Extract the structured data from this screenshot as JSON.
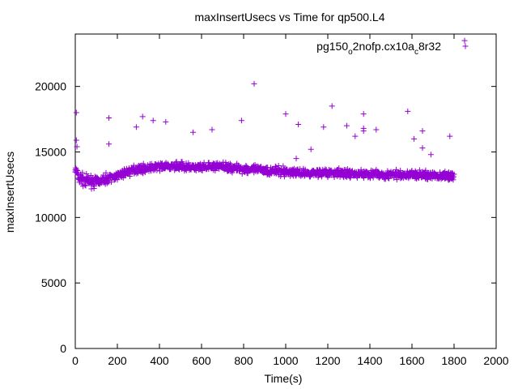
{
  "chart_data": {
    "type": "scatter",
    "title": "maxInsertUsecs vs Time for qp500.L4",
    "xlabel": "Time(s)",
    "ylabel": "maxInsertUsecs",
    "xlim": [
      0,
      2000
    ],
    "ylim": [
      0,
      24000
    ],
    "x_ticks": [
      "0",
      "200",
      "400",
      "600",
      "800",
      "1000",
      "1200",
      "1400",
      "1600",
      "1800",
      "2000"
    ],
    "y_ticks": [
      "0",
      "5000",
      "10000",
      "15000",
      "20000"
    ],
    "x_tick_values": [
      0,
      200,
      400,
      600,
      800,
      1000,
      1200,
      1400,
      1600,
      1800,
      2000
    ],
    "y_tick_values": [
      0,
      5000,
      10000,
      15000,
      20000
    ],
    "grid": false,
    "legend_position": "top-right",
    "marker": "+",
    "series": [
      {
        "name_parts": [
          "pg150",
          "o",
          "2nofp.cx10a",
          "c",
          "8r32"
        ],
        "color": "#9400d3",
        "trend": [
          [
            0,
            13600
          ],
          [
            20,
            13000
          ],
          [
            50,
            12800
          ],
          [
            100,
            12700
          ],
          [
            150,
            12900
          ],
          [
            200,
            13200
          ],
          [
            250,
            13500
          ],
          [
            300,
            13700
          ],
          [
            400,
            13900
          ],
          [
            500,
            13900
          ],
          [
            600,
            13800
          ],
          [
            700,
            13900
          ],
          [
            800,
            13700
          ],
          [
            900,
            13600
          ],
          [
            1000,
            13500
          ],
          [
            1100,
            13400
          ],
          [
            1200,
            13400
          ],
          [
            1300,
            13350
          ],
          [
            1400,
            13300
          ],
          [
            1500,
            13250
          ],
          [
            1600,
            13250
          ],
          [
            1700,
            13200
          ],
          [
            1800,
            13150
          ]
        ],
        "outliers": [
          [
            5,
            18000
          ],
          [
            5,
            15900
          ],
          [
            8,
            15400
          ],
          [
            160,
            17600
          ],
          [
            160,
            15600
          ],
          [
            290,
            16900
          ],
          [
            320,
            17700
          ],
          [
            370,
            17400
          ],
          [
            430,
            17300
          ],
          [
            560,
            16500
          ],
          [
            650,
            16700
          ],
          [
            790,
            17400
          ],
          [
            850,
            20200
          ],
          [
            1000,
            17900
          ],
          [
            1060,
            17100
          ],
          [
            1180,
            16900
          ],
          [
            1220,
            18500
          ],
          [
            1290,
            17000
          ],
          [
            1330,
            16200
          ],
          [
            1370,
            17900
          ],
          [
            1370,
            16800
          ],
          [
            1370,
            16600
          ],
          [
            1430,
            16700
          ],
          [
            1580,
            18100
          ],
          [
            1610,
            16000
          ],
          [
            1650,
            16600
          ],
          [
            1780,
            16200
          ],
          [
            1850,
            23500
          ],
          [
            1690,
            14800
          ],
          [
            1050,
            14500
          ],
          [
            1120,
            15200
          ],
          [
            1650,
            15300
          ]
        ]
      }
    ]
  }
}
